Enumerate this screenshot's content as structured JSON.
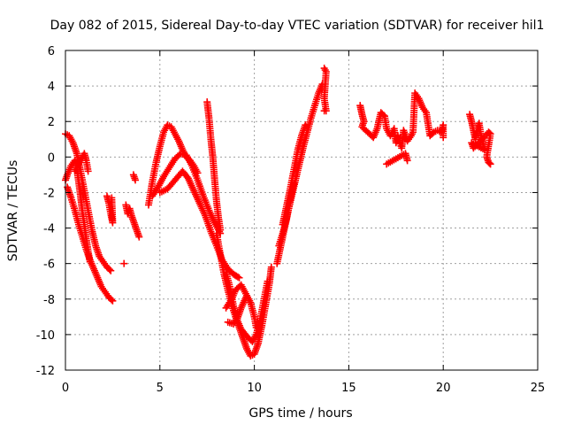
{
  "chart_data": {
    "type": "scatter",
    "title": "Day 082 of 2015, Sidereal Day-to-day VTEC variation (SDTVAR) for receiver hil1",
    "xlabel": "GPS time / hours",
    "ylabel": "SDTVAR / TECUs",
    "xlim": [
      0,
      25
    ],
    "ylim": [
      -12,
      6
    ],
    "xticks": [
      0,
      5,
      10,
      15,
      20,
      25
    ],
    "yticks": [
      -12,
      -10,
      -8,
      -6,
      -4,
      -2,
      0,
      2,
      4,
      6
    ],
    "grid": true,
    "marker": "+",
    "marker_color": "#ff0000",
    "series": [
      {
        "points": [
          [
            0.0,
            1.3
          ],
          [
            0.2,
            1.2
          ],
          [
            0.4,
            0.8
          ],
          [
            0.6,
            0.2
          ],
          [
            0.8,
            -0.8
          ],
          [
            1.0,
            -1.9
          ],
          [
            1.2,
            -3.0
          ],
          [
            1.4,
            -4.1
          ],
          [
            1.6,
            -5.0
          ],
          [
            1.8,
            -5.6
          ],
          [
            2.0,
            -5.9
          ],
          [
            2.2,
            -6.2
          ],
          [
            2.4,
            -6.4
          ]
        ]
      },
      {
        "points": [
          [
            0.0,
            -1.3
          ],
          [
            0.1,
            -1.0
          ],
          [
            0.3,
            -0.5
          ],
          [
            0.5,
            -0.2
          ],
          [
            0.6,
            -0.6
          ],
          [
            0.7,
            -1.4
          ],
          [
            0.8,
            -2.2
          ],
          [
            0.9,
            -3.1
          ],
          [
            1.0,
            -3.8
          ],
          [
            1.1,
            -4.6
          ],
          [
            1.2,
            -5.3
          ],
          [
            1.3,
            -5.9
          ]
        ]
      },
      {
        "points": [
          [
            0.1,
            -1.7
          ],
          [
            0.3,
            -2.3
          ],
          [
            0.5,
            -3.0
          ],
          [
            0.7,
            -3.8
          ],
          [
            0.9,
            -4.5
          ],
          [
            1.1,
            -5.2
          ],
          [
            1.3,
            -5.8
          ],
          [
            1.5,
            -6.3
          ],
          [
            1.7,
            -6.8
          ],
          [
            1.9,
            -7.3
          ],
          [
            2.1,
            -7.6
          ],
          [
            2.3,
            -7.9
          ],
          [
            2.5,
            -8.1
          ]
        ]
      },
      {
        "points": [
          [
            0.5,
            -0.8
          ],
          [
            0.7,
            -0.4
          ],
          [
            0.9,
            0.0
          ],
          [
            1.0,
            0.2
          ],
          [
            1.1,
            -0.2
          ],
          [
            1.2,
            -0.8
          ]
        ]
      },
      {
        "points": [
          [
            2.2,
            -2.2
          ],
          [
            2.3,
            -2.6
          ],
          [
            2.4,
            -3.2
          ],
          [
            2.5,
            -3.7
          ],
          [
            2.45,
            -2.3
          ]
        ]
      },
      {
        "points": [
          [
            3.2,
            -2.7
          ],
          [
            3.3,
            -3.2
          ],
          [
            3.4,
            -2.9
          ],
          [
            3.5,
            -3.3
          ],
          [
            3.6,
            -3.6
          ],
          [
            3.7,
            -3.9
          ],
          [
            3.8,
            -4.2
          ],
          [
            3.9,
            -4.5
          ],
          [
            3.6,
            -1.0
          ],
          [
            3.7,
            -1.3
          ],
          [
            3.1,
            -6.0
          ]
        ]
      },
      {
        "points": [
          [
            4.4,
            -2.7
          ],
          [
            4.6,
            -1.4
          ],
          [
            4.8,
            -0.3
          ],
          [
            5.0,
            0.6
          ],
          [
            5.2,
            1.4
          ],
          [
            5.4,
            1.8
          ],
          [
            5.6,
            1.7
          ],
          [
            5.8,
            1.3
          ],
          [
            6.0,
            0.9
          ],
          [
            6.2,
            0.4
          ],
          [
            6.4,
            0.0
          ],
          [
            6.6,
            -0.2
          ],
          [
            6.8,
            -0.5
          ],
          [
            7.0,
            -0.9
          ]
        ]
      },
      {
        "points": [
          [
            4.6,
            -2.2
          ],
          [
            4.9,
            -1.7
          ],
          [
            5.2,
            -1.1
          ],
          [
            5.5,
            -0.6
          ],
          [
            5.8,
            -0.1
          ],
          [
            6.1,
            0.2
          ],
          [
            6.4,
            0.1
          ],
          [
            6.7,
            -0.5
          ],
          [
            7.0,
            -1.3
          ],
          [
            7.3,
            -2.2
          ],
          [
            7.6,
            -3.0
          ],
          [
            7.9,
            -3.7
          ],
          [
            8.2,
            -4.3
          ]
        ]
      },
      {
        "points": [
          [
            5.0,
            -2.0
          ],
          [
            5.4,
            -1.8
          ],
          [
            5.8,
            -1.3
          ],
          [
            6.2,
            -0.8
          ],
          [
            6.5,
            -1.2
          ],
          [
            6.8,
            -1.9
          ],
          [
            7.1,
            -2.6
          ],
          [
            7.4,
            -3.3
          ],
          [
            7.7,
            -4.2
          ],
          [
            8.0,
            -5.0
          ],
          [
            8.3,
            -5.8
          ],
          [
            8.6,
            -6.3
          ],
          [
            8.9,
            -6.6
          ],
          [
            9.2,
            -6.8
          ]
        ]
      },
      {
        "points": [
          [
            7.5,
            3.1
          ],
          [
            7.6,
            2.2
          ],
          [
            7.7,
            1.0
          ],
          [
            7.8,
            0.0
          ],
          [
            7.9,
            -1.3
          ],
          [
            8.0,
            -2.5
          ],
          [
            8.1,
            -3.4
          ],
          [
            8.2,
            -4.1
          ]
        ]
      },
      {
        "points": [
          [
            8.0,
            -4.3
          ],
          [
            8.2,
            -5.5
          ],
          [
            8.4,
            -6.6
          ],
          [
            8.6,
            -7.5
          ],
          [
            8.8,
            -8.3
          ],
          [
            9.0,
            -9.0
          ],
          [
            9.2,
            -9.6
          ],
          [
            9.4,
            -10.2
          ],
          [
            9.6,
            -10.8
          ],
          [
            9.8,
            -11.2
          ],
          [
            10.0,
            -11.1
          ],
          [
            10.2,
            -10.5
          ],
          [
            10.4,
            -9.5
          ],
          [
            10.6,
            -8.3
          ],
          [
            10.8,
            -7.1
          ],
          [
            10.9,
            -6.2
          ]
        ]
      },
      {
        "points": [
          [
            8.5,
            -6.5
          ],
          [
            8.7,
            -7.3
          ],
          [
            8.9,
            -8.4
          ],
          [
            9.1,
            -9.2
          ],
          [
            9.3,
            -9.7
          ],
          [
            9.6,
            -10.1
          ],
          [
            9.9,
            -10.4
          ],
          [
            10.1,
            -10.0
          ],
          [
            10.3,
            -9.2
          ],
          [
            10.5,
            -8.1
          ],
          [
            10.7,
            -7.0
          ]
        ]
      },
      {
        "points": [
          [
            8.6,
            -9.3
          ],
          [
            8.9,
            -9.4
          ],
          [
            9.1,
            -9.1
          ],
          [
            9.3,
            -8.5
          ],
          [
            9.6,
            -7.8
          ],
          [
            9.8,
            -8.2
          ],
          [
            10.0,
            -9.0
          ],
          [
            10.1,
            -9.6
          ]
        ]
      },
      {
        "points": [
          [
            8.5,
            -8.5
          ],
          [
            8.8,
            -8.0
          ],
          [
            9.0,
            -7.5
          ],
          [
            9.3,
            -7.2
          ],
          [
            9.6,
            -7.8
          ]
        ]
      },
      {
        "points": [
          [
            11.2,
            -6.0
          ],
          [
            11.4,
            -5.0
          ],
          [
            11.6,
            -4.0
          ],
          [
            11.8,
            -3.0
          ],
          [
            12.0,
            -2.1
          ],
          [
            12.2,
            -1.2
          ],
          [
            12.4,
            -0.3
          ],
          [
            12.6,
            0.6
          ],
          [
            12.8,
            1.4
          ],
          [
            13.0,
            2.2
          ],
          [
            13.2,
            2.9
          ],
          [
            13.4,
            3.6
          ],
          [
            13.6,
            4.1
          ]
        ]
      },
      {
        "points": [
          [
            11.5,
            -3.8
          ],
          [
            11.7,
            -2.8
          ],
          [
            11.9,
            -1.8
          ],
          [
            12.1,
            -0.7
          ],
          [
            12.3,
            0.4
          ],
          [
            12.5,
            1.2
          ],
          [
            12.7,
            1.8
          ]
        ]
      },
      {
        "points": [
          [
            11.3,
            -5.0
          ],
          [
            11.5,
            -4.3
          ],
          [
            11.7,
            -3.5
          ],
          [
            11.9,
            -2.4
          ],
          [
            12.1,
            -1.5
          ]
        ]
      },
      {
        "points": [
          [
            13.7,
            5.0
          ],
          [
            13.8,
            4.8
          ],
          [
            13.7,
            3.3
          ],
          [
            13.8,
            2.6
          ],
          [
            13.7,
            2.6
          ]
        ]
      },
      {
        "points": [
          [
            15.6,
            2.9
          ],
          [
            15.7,
            2.4
          ],
          [
            15.8,
            2.0
          ],
          [
            15.7,
            1.7
          ],
          [
            16.3,
            1.1
          ],
          [
            16.5,
            1.6
          ],
          [
            16.7,
            2.5
          ],
          [
            16.9,
            2.3
          ],
          [
            17.0,
            1.6
          ],
          [
            17.2,
            1.2
          ],
          [
            17.4,
            1.6
          ],
          [
            17.5,
            0.8
          ],
          [
            17.6,
            1.2
          ],
          [
            17.8,
            0.5
          ],
          [
            17.9,
            1.5
          ],
          [
            18.0,
            1.2
          ],
          [
            18.1,
            0.9
          ],
          [
            18.3,
            1.2
          ],
          [
            18.4,
            1.4
          ],
          [
            18.5,
            3.6
          ],
          [
            18.7,
            3.3
          ],
          [
            18.9,
            2.8
          ],
          [
            19.1,
            2.5
          ],
          [
            19.3,
            1.2
          ],
          [
            19.5,
            1.4
          ],
          [
            19.7,
            1.5
          ],
          [
            19.9,
            1.4
          ],
          [
            20.0,
            1.8
          ],
          [
            20.0,
            1.1
          ],
          [
            17.0,
            -0.4
          ],
          [
            18.0,
            0.2
          ],
          [
            18.1,
            -0.2
          ]
        ]
      },
      {
        "points": [
          [
            21.4,
            2.4
          ],
          [
            21.5,
            2.0
          ],
          [
            21.6,
            1.5
          ],
          [
            21.7,
            1.0
          ],
          [
            21.8,
            1.6
          ],
          [
            21.9,
            1.9
          ],
          [
            22.0,
            1.2
          ],
          [
            22.1,
            0.8
          ],
          [
            22.2,
            0.4
          ],
          [
            21.5,
            0.8
          ],
          [
            21.6,
            0.5
          ],
          [
            22.4,
            1.4
          ],
          [
            22.5,
            1.3
          ],
          [
            22.3,
            0.0
          ],
          [
            22.4,
            -0.3
          ],
          [
            22.5,
            -0.4
          ]
        ]
      }
    ]
  }
}
